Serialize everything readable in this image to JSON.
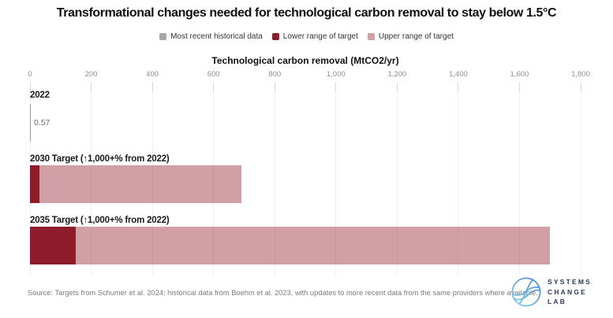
{
  "title": "Transformational changes needed for technological carbon removal to stay below 1.5°C",
  "legend": {
    "items": [
      {
        "label": "Most recent historical data",
        "color": "#a9a9a3"
      },
      {
        "label": "Lower range of target",
        "color": "#8e1c2b"
      },
      {
        "label": "Upper range of target",
        "color": "#d0a0a6"
      }
    ]
  },
  "axis": {
    "title": "Technological carbon removal (MtCO2/yr)"
  },
  "source": "Source: Targets from Schumer et al. 2024; historical data from Boehm et al. 2023, with updates to more recent data from the same providers where available.",
  "logo": {
    "lines": [
      "SYSTEMS",
      "CHANGE",
      "LAB"
    ],
    "text_color": "#2b3a5c",
    "icon_gradient": [
      "#3f7ed6",
      "#7fd3f2"
    ]
  },
  "chart_data": {
    "type": "bar",
    "orientation": "horizontal",
    "title": "Transformational changes needed for technological carbon removal to stay below 1.5°C",
    "xlabel": "Technological carbon removal (MtCO2/yr)",
    "xlim": [
      0,
      1800
    ],
    "xticks": [
      0,
      200,
      400,
      600,
      800,
      1000,
      1200,
      1400,
      1600,
      1800
    ],
    "xtick_labels": [
      "0",
      "200",
      "400",
      "600",
      "800",
      "1,000",
      "1,200",
      "1,400",
      "1,600",
      "1,800"
    ],
    "grid": true,
    "legend_position": "top",
    "unit": "MtCO2/yr",
    "rows": [
      {
        "label": "2022",
        "series": "Most recent historical data",
        "value": 0.57,
        "value_label": "0.57"
      },
      {
        "label": "2030 Target (↑1,000+% from 2022)",
        "lower": 30,
        "upper": 690
      },
      {
        "label": "2035 Target (↑1,000+% from 2022)",
        "lower": 150,
        "upper": 1700
      }
    ],
    "colors": {
      "historical": "#a9a9a3",
      "lower": "#8e1c2b",
      "upper": "#d0a0a6"
    }
  }
}
